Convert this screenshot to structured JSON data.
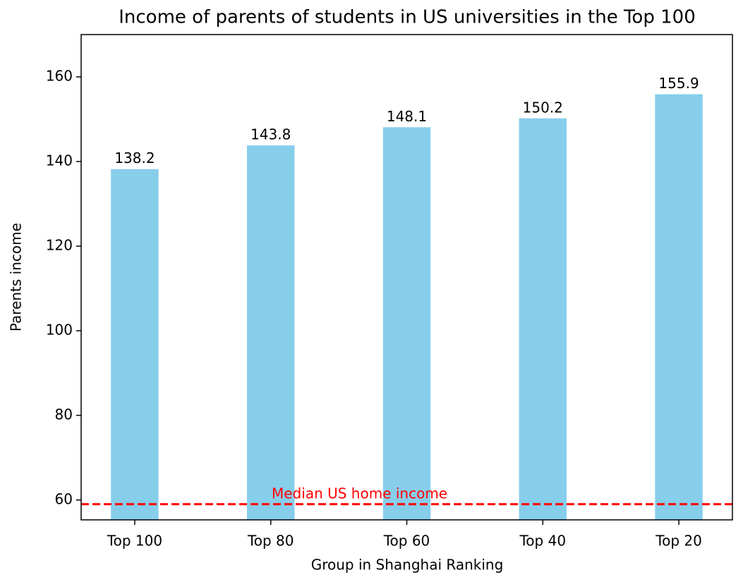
{
  "chart_data": {
    "type": "bar",
    "title": "Income of parents of students in US universities in the Top 100",
    "xlabel": "Group in Shanghai Ranking",
    "ylabel": "Parents income",
    "categories": [
      "Top 100",
      "Top 80",
      "Top 60",
      "Top 40",
      "Top 20"
    ],
    "values": [
      138.2,
      143.8,
      148.1,
      150.2,
      155.9
    ],
    "color": "#87ceeb",
    "ylim": [
      55.3,
      170
    ],
    "yticks": [
      60,
      80,
      100,
      120,
      140,
      160
    ],
    "reference_line": {
      "value": 59,
      "label": "Median US home income",
      "color": "#ff0000"
    }
  }
}
